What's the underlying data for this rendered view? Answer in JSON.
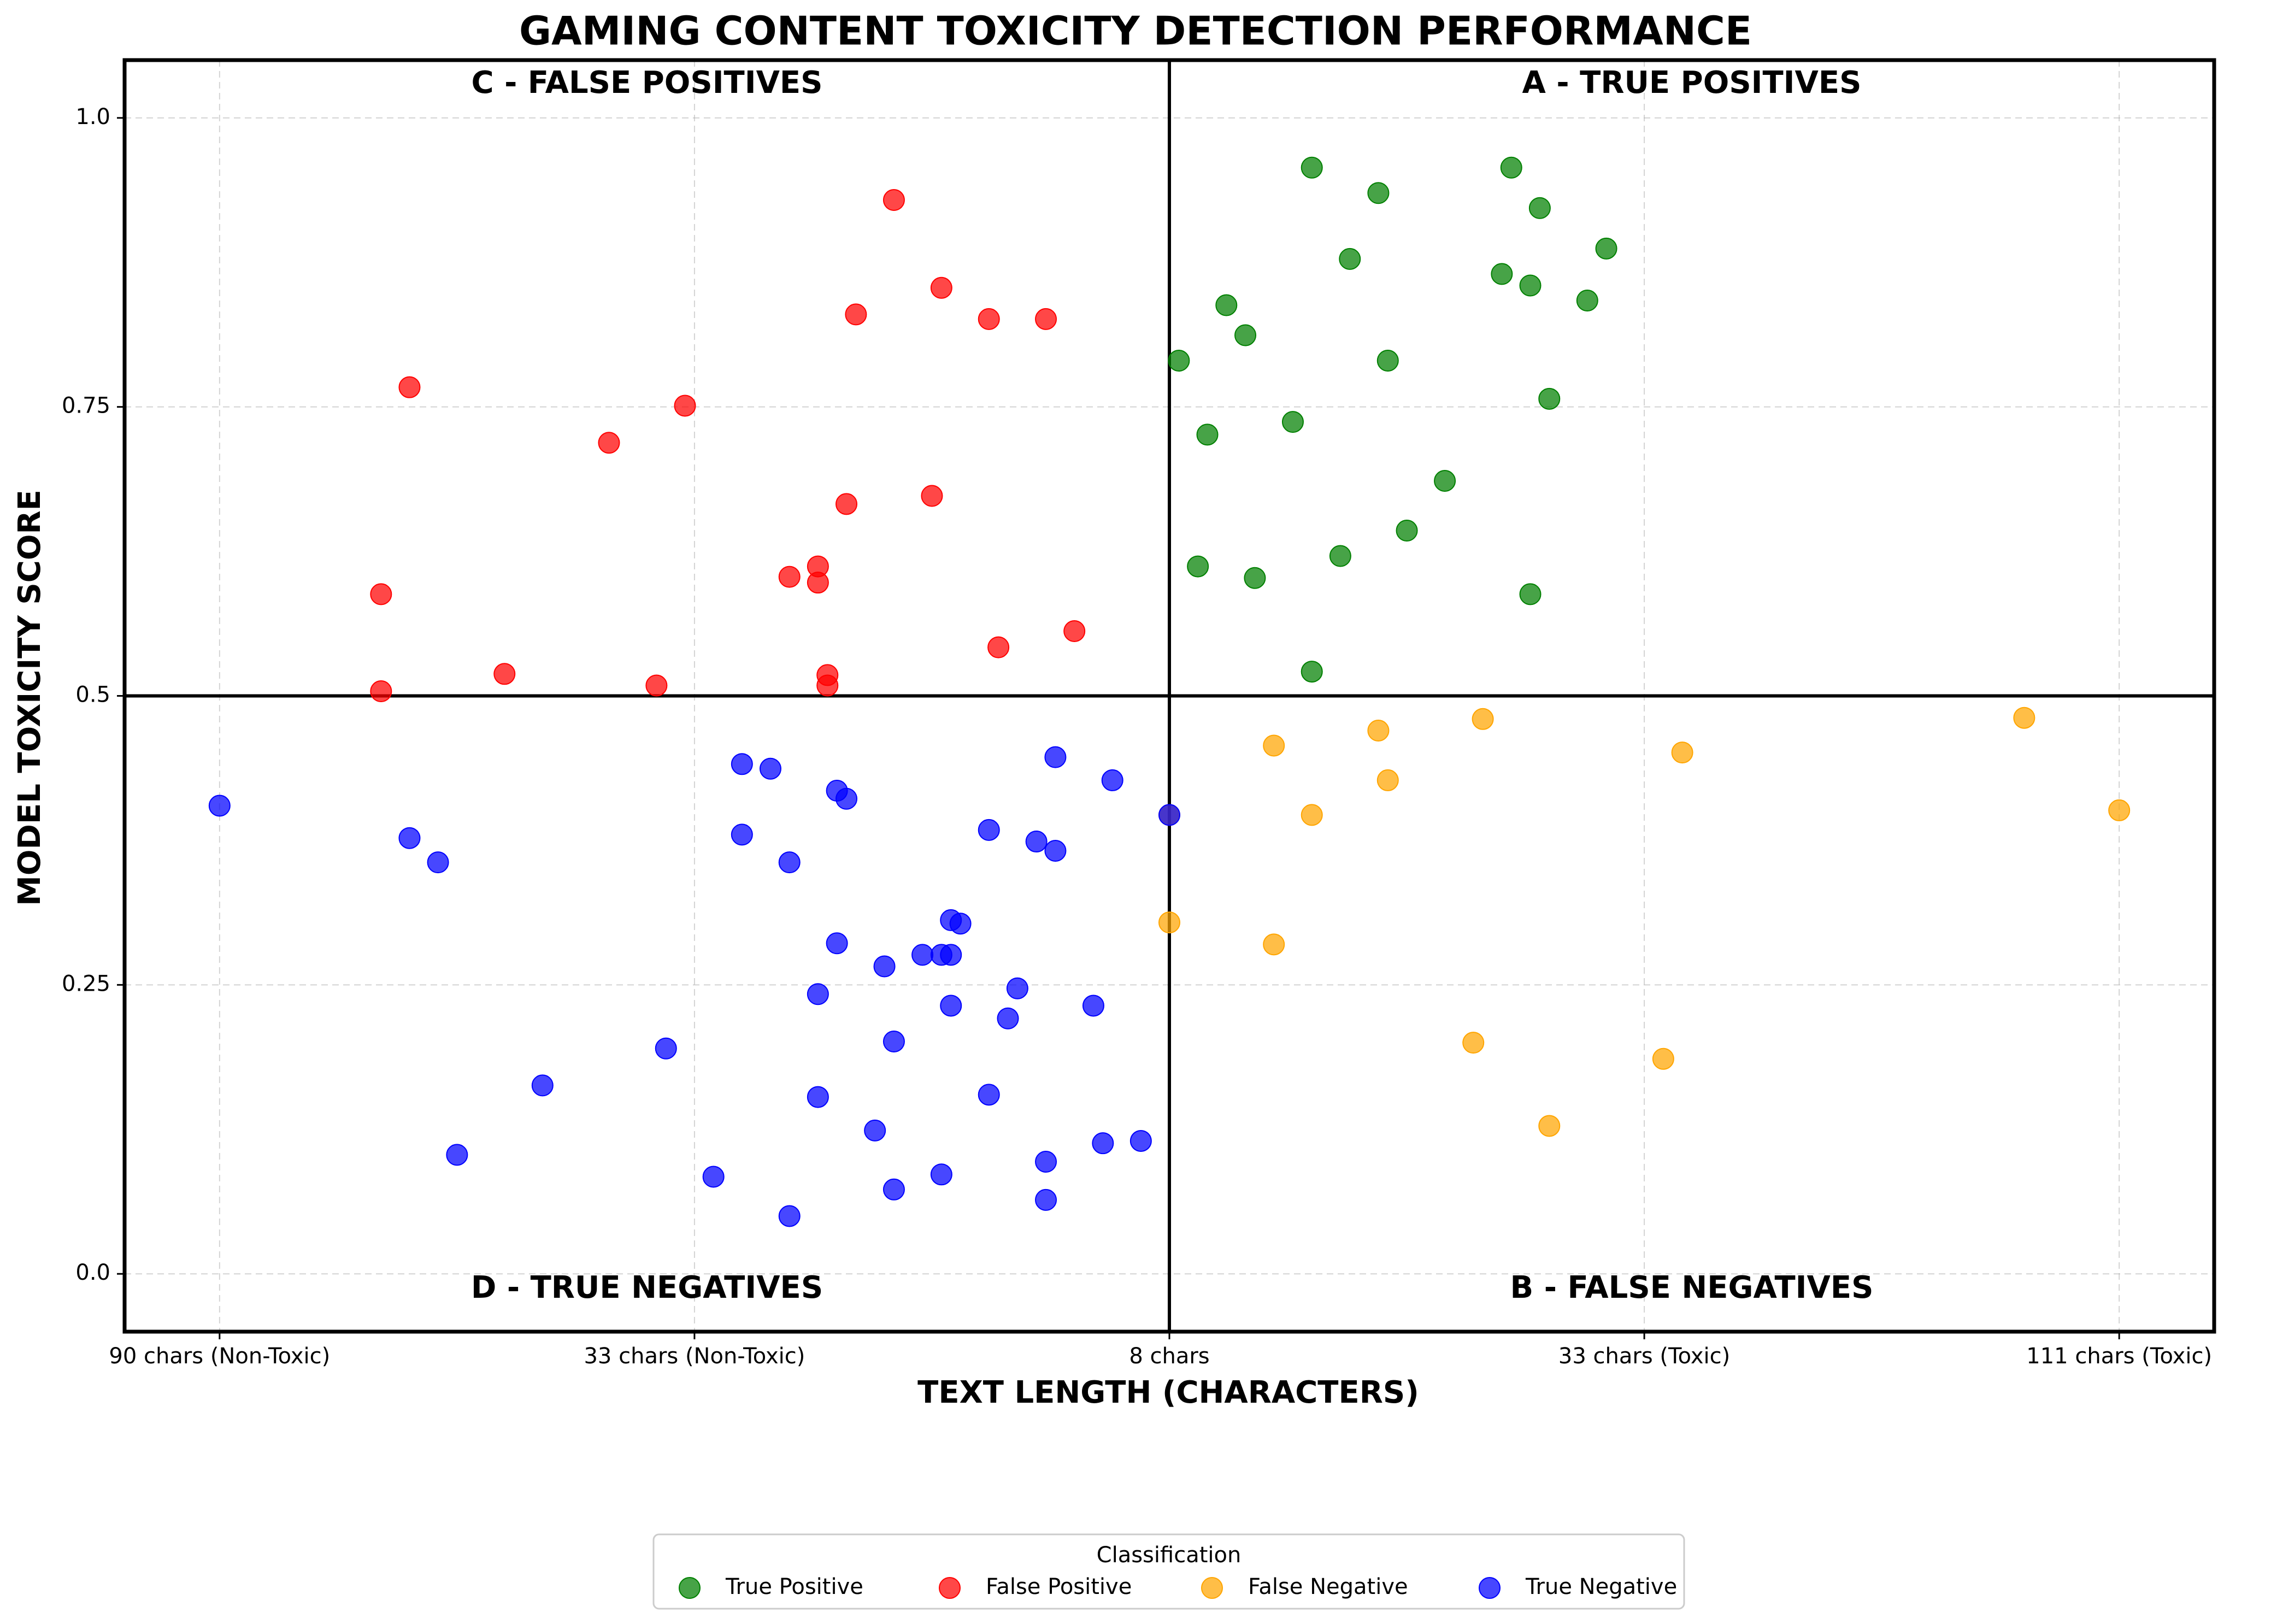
{
  "chart_data": {
    "type": "scatter",
    "title": "GAMING CONTENT TOXICITY DETECTION PERFORMANCE",
    "xlabel": "TEXT LENGTH (CHARACTERS)",
    "ylabel": "MODEL TOXICITY SCORE",
    "xlim": [
      -1.1,
      1.1
    ],
    "ylim": [
      -0.05,
      1.05
    ],
    "x_ticks": [
      {
        "value": -1.0,
        "label": "90 chars (Non-Toxic)"
      },
      {
        "value": -0.5,
        "label": "33 chars (Non-Toxic)"
      },
      {
        "value": 0.0,
        "label": "8 chars"
      },
      {
        "value": 0.5,
        "label": "33 chars (Toxic)"
      },
      {
        "value": 1.0,
        "label": "111 chars (Toxic)"
      }
    ],
    "y_ticks": [
      {
        "value": 0.0,
        "label": "0.0"
      },
      {
        "value": 0.25,
        "label": "0.25"
      },
      {
        "value": 0.5,
        "label": "0.5"
      },
      {
        "value": 0.75,
        "label": "0.75"
      },
      {
        "value": 1.0,
        "label": "1.0"
      }
    ],
    "grid": true,
    "divider_lines": {
      "x": 0.0,
      "y": 0.5
    },
    "quadrant_labels": [
      {
        "text": "C - FALSE POSITIVES",
        "position": "top-left"
      },
      {
        "text": "A - TRUE POSITIVES",
        "position": "top-right"
      },
      {
        "text": "D - TRUE NEGATIVES",
        "position": "bottom-left"
      },
      {
        "text": "B - FALSE NEGATIVES",
        "position": "bottom-right"
      }
    ],
    "legend": {
      "title": "Classification",
      "placement": "bottom-center"
    },
    "series": [
      {
        "name": "True Positive",
        "color": "#008000",
        "points": [
          [
            0.01,
            0.79
          ],
          [
            0.06,
            0.838
          ],
          [
            0.08,
            0.812
          ],
          [
            0.15,
            0.957
          ],
          [
            0.19,
            0.878
          ],
          [
            0.22,
            0.935
          ],
          [
            0.23,
            0.79
          ],
          [
            0.35,
            0.865
          ],
          [
            0.36,
            0.957
          ],
          [
            0.38,
            0.855
          ],
          [
            0.39,
            0.922
          ],
          [
            0.46,
            0.887
          ],
          [
            0.44,
            0.842
          ],
          [
            0.4,
            0.757
          ],
          [
            0.04,
            0.726
          ],
          [
            0.13,
            0.737
          ],
          [
            0.29,
            0.686
          ],
          [
            0.25,
            0.643
          ],
          [
            0.03,
            0.612
          ],
          [
            0.09,
            0.602
          ],
          [
            0.18,
            0.621
          ],
          [
            0.38,
            0.588
          ],
          [
            0.15,
            0.521
          ]
        ]
      },
      {
        "name": "False Positive",
        "color": "#ff0000",
        "points": [
          [
            -0.29,
            0.929
          ],
          [
            -0.24,
            0.853
          ],
          [
            -0.33,
            0.83
          ],
          [
            -0.19,
            0.826
          ],
          [
            -0.13,
            0.826
          ],
          [
            -0.8,
            0.767
          ],
          [
            -0.51,
            0.751
          ],
          [
            -0.59,
            0.719
          ],
          [
            -0.34,
            0.666
          ],
          [
            -0.25,
            0.673
          ],
          [
            -0.37,
            0.612
          ],
          [
            -0.37,
            0.598
          ],
          [
            -0.4,
            0.603
          ],
          [
            -0.83,
            0.588
          ],
          [
            -0.18,
            0.542
          ],
          [
            -0.1,
            0.556
          ],
          [
            -0.36,
            0.518
          ],
          [
            -0.36,
            0.509
          ],
          [
            -0.7,
            0.519
          ],
          [
            -0.54,
            0.509
          ],
          [
            -0.83,
            0.504
          ]
        ]
      },
      {
        "name": "False Negative",
        "color": "#ffa500",
        "points": [
          [
            0.11,
            0.457
          ],
          [
            0.22,
            0.47
          ],
          [
            0.33,
            0.48
          ],
          [
            0.15,
            0.397
          ],
          [
            0.23,
            0.427
          ],
          [
            0.54,
            0.451
          ],
          [
            0.9,
            0.481
          ],
          [
            1.0,
            0.401
          ],
          [
            0.0,
            0.397
          ],
          [
            0.0,
            0.304
          ],
          [
            0.11,
            0.285
          ],
          [
            0.32,
            0.2
          ],
          [
            0.52,
            0.186
          ],
          [
            0.4,
            0.128
          ]
        ]
      },
      {
        "name": "True Negative",
        "color": "#0000ff",
        "points": [
          [
            -1.0,
            0.405
          ],
          [
            -0.8,
            0.377
          ],
          [
            -0.77,
            0.356
          ],
          [
            -0.45,
            0.441
          ],
          [
            -0.42,
            0.437
          ],
          [
            -0.35,
            0.418
          ],
          [
            -0.34,
            0.411
          ],
          [
            -0.45,
            0.38
          ],
          [
            -0.4,
            0.356
          ],
          [
            -0.12,
            0.447
          ],
          [
            -0.06,
            0.427
          ],
          [
            0.0,
            0.397
          ],
          [
            -0.19,
            0.384
          ],
          [
            -0.14,
            0.374
          ],
          [
            -0.12,
            0.366
          ],
          [
            -0.23,
            0.306
          ],
          [
            -0.22,
            0.303
          ],
          [
            -0.35,
            0.286
          ],
          [
            -0.3,
            0.266
          ],
          [
            -0.26,
            0.276
          ],
          [
            -0.24,
            0.276
          ],
          [
            -0.23,
            0.276
          ],
          [
            -0.16,
            0.247
          ],
          [
            -0.37,
            0.242
          ],
          [
            -0.23,
            0.232
          ],
          [
            -0.08,
            0.232
          ],
          [
            -0.17,
            0.221
          ],
          [
            -0.29,
            0.201
          ],
          [
            -0.53,
            0.195
          ],
          [
            -0.66,
            0.163
          ],
          [
            -0.37,
            0.153
          ],
          [
            -0.19,
            0.155
          ],
          [
            -0.31,
            0.124
          ],
          [
            -0.75,
            0.103
          ],
          [
            -0.48,
            0.084
          ],
          [
            -0.24,
            0.086
          ],
          [
            -0.13,
            0.097
          ],
          [
            -0.07,
            0.113
          ],
          [
            -0.03,
            0.115
          ],
          [
            -0.29,
            0.073
          ],
          [
            -0.4,
            0.05
          ],
          [
            -0.13,
            0.064
          ]
        ]
      }
    ]
  }
}
